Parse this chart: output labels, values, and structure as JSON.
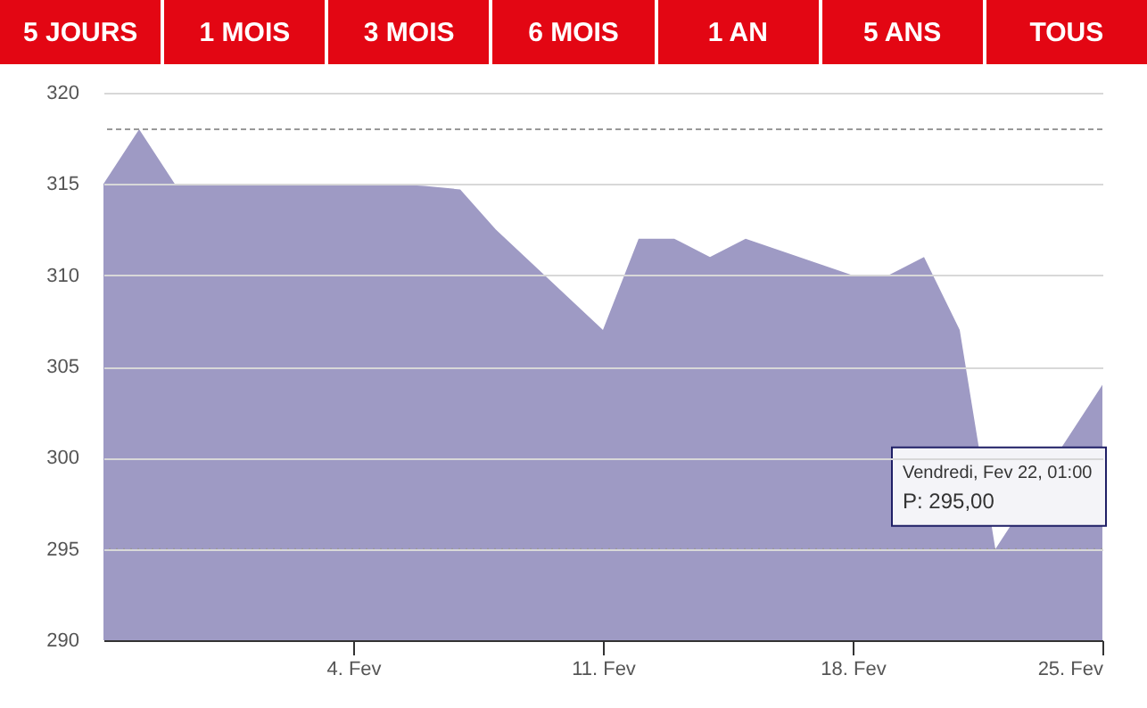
{
  "chart_data": {
    "type": "area",
    "x": [
      "--01-28",
      "--01-29",
      "--01-30",
      "--01-31",
      "--02-01",
      "--02-04",
      "--02-05",
      "--02-06",
      "--02-07",
      "--02-08",
      "--02-11",
      "--02-12",
      "--02-13",
      "--02-14",
      "--02-15",
      "--02-18",
      "--02-19",
      "--02-20",
      "--02-21",
      "--02-22",
      "--02-25"
    ],
    "series": [
      {
        "color": "#9e9ac4",
        "values": [
          315,
          318,
          315,
          315,
          315,
          315,
          315,
          314.9,
          314.7,
          312.5,
          307,
          312,
          312,
          311,
          312,
          310,
          310,
          311,
          307,
          295,
          304
        ]
      }
    ],
    "xlim": [
      "--01-28",
      "--02-25"
    ],
    "xticks": [
      {
        "value": "--02-04",
        "label": "4. Fev"
      },
      {
        "value": "--02-11",
        "label": "11. Fev"
      },
      {
        "value": "--02-18",
        "label": "18. Fev"
      },
      {
        "value": "--02-25",
        "label": "25. Fev"
      }
    ],
    "ylim": [
      290,
      320
    ],
    "yticks": [
      290,
      295,
      300,
      305,
      310,
      315,
      320
    ],
    "grid": "y",
    "ref_lines": [
      {
        "axis": "y",
        "value": 318,
        "line_style": "dashed",
        "color": "#999999"
      },
      {
        "axis": "y",
        "value": 295,
        "line_style": "dotted",
        "color": "#999999"
      }
    ],
    "annotations": [
      "5 JOURS",
      "1 MOIS",
      "3 MOIS",
      "6 MOIS",
      "1 AN",
      "5 ANS",
      "TOUS",
      "Vendredi, Fev 22, 01:00",
      {
        "text": "P: 295,00",
        "x": "--02-22",
        "y": 295
      }
    ]
  }
}
